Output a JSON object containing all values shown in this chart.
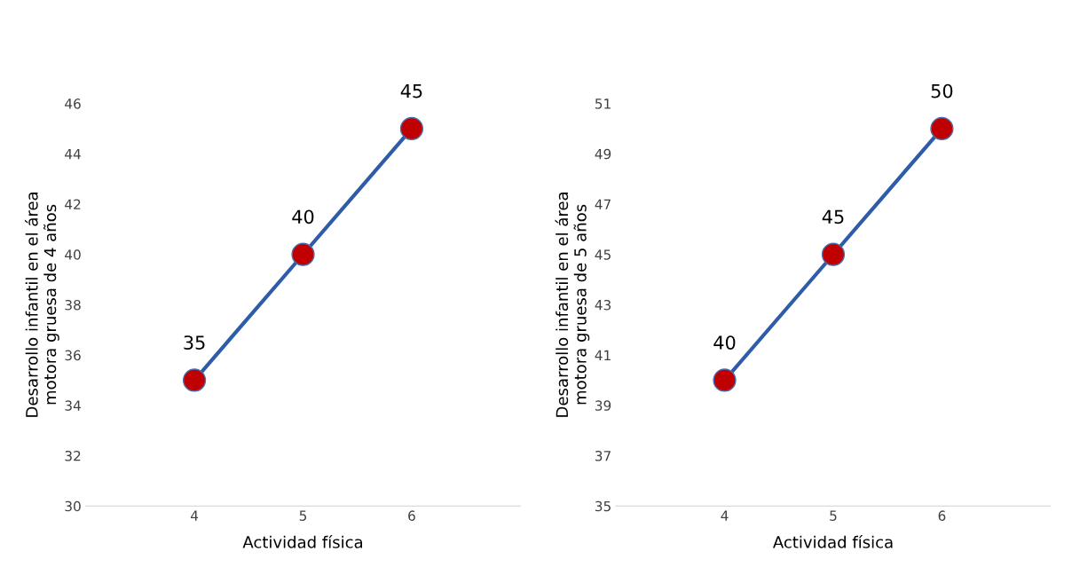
{
  "chart_data": [
    {
      "type": "line",
      "ylabel": "Desarrollo infantil en el área\nmotora gruesa de 4 años",
      "xlabel": "Actividad física",
      "categories": [
        "4",
        "5",
        "6"
      ],
      "series": [
        {
          "color": "#2e5ca8",
          "colors": [
            "#c00000",
            "#c00000",
            "#c00000"
          ],
          "values": [
            35,
            40,
            45
          ]
        }
      ],
      "ylim": [
        30,
        46
      ],
      "yticks": [
        30,
        32,
        34,
        36,
        38,
        40,
        42,
        44,
        46
      ],
      "marker": "circle",
      "data_labels": true,
      "grid": false,
      "legend": false
    },
    {
      "type": "line",
      "ylabel": "Desarrollo infantil en el área\nmotora gruesa de 5 años",
      "xlabel": "Actividad física",
      "categories": [
        "4",
        "5",
        "6"
      ],
      "series": [
        {
          "color": "#2e5ca8",
          "colors": [
            "#c00000",
            "#c00000",
            "#c00000"
          ],
          "values": [
            40,
            45,
            50
          ]
        }
      ],
      "ylim": [
        35,
        51
      ],
      "yticks": [
        35,
        37,
        39,
        41,
        43,
        45,
        47,
        49,
        51
      ],
      "marker": "circle",
      "data_labels": true,
      "grid": false,
      "legend": false
    }
  ]
}
